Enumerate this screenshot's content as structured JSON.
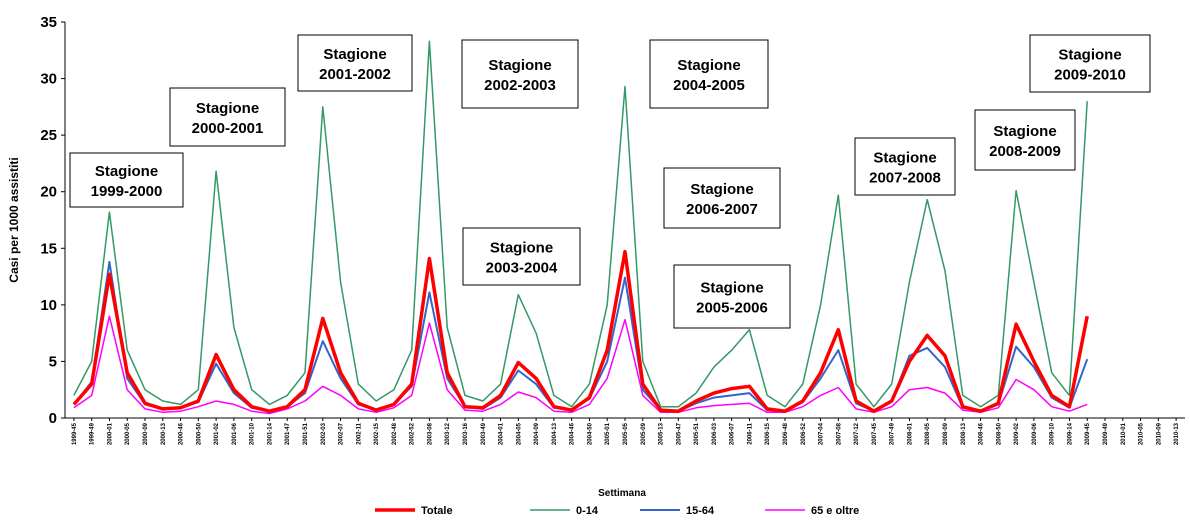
{
  "chart_data": {
    "type": "line",
    "y_label": "Casi per 1000 assistiti",
    "x_label": "Settimana",
    "categories": [
      "1999-45",
      "1999-49",
      "2000-01",
      "2000-05",
      "2000-09",
      "2000-13",
      "2000-46",
      "2000-50",
      "2001-02",
      "2001-06",
      "2001-10",
      "2001-14",
      "2001-47",
      "2001-51",
      "2002-03",
      "2002-07",
      "2002-11",
      "2002-15",
      "2002-48",
      "2002-52",
      "2003-08",
      "2003-12",
      "2003-16",
      "2003-49",
      "2004-01",
      "2004-05",
      "2004-09",
      "2004-13",
      "2004-46",
      "2004-50",
      "2005-01",
      "2005-05",
      "2005-09",
      "2005-13",
      "2005-47",
      "2005-51",
      "2006-03",
      "2006-07",
      "2006-11",
      "2006-15",
      "2006-48",
      "2006-52",
      "2007-04",
      "2007-08",
      "2007-12",
      "2007-45",
      "2007-49",
      "2008-01",
      "2008-05",
      "2008-09",
      "2008-13",
      "2008-46",
      "2008-50",
      "2009-02",
      "2009-06",
      "2009-10",
      "2009-14",
      "2009-45",
      "2009-49",
      "2010-01",
      "2010-05",
      "2010-09",
      "2010-13"
    ],
    "series": [
      {
        "name": "Totale",
        "color": "#ff0000",
        "width": 3.5,
        "values": [
          1.2,
          3,
          12.7,
          4,
          1.3,
          0.8,
          0.9,
          1.5,
          5.6,
          2.5,
          1,
          0.6,
          1,
          2.5,
          8.8,
          4,
          1.3,
          0.7,
          1.2,
          3,
          14.1,
          4,
          1,
          0.9,
          2,
          4.9,
          3.5,
          1,
          0.7,
          1.8,
          6,
          14.7,
          3,
          0.7,
          0.6,
          1.5,
          2.2,
          2.6,
          2.8,
          0.8,
          0.6,
          1.5,
          4,
          7.8,
          1.5,
          0.6,
          1.5,
          5,
          7.3,
          5.5,
          1,
          0.6,
          1.3,
          8.3,
          5,
          2,
          1,
          9,
          null,
          null,
          null,
          null,
          null
        ]
      },
      {
        "name": "0-14",
        "color": "#339966",
        "width": 1.5,
        "values": [
          2,
          5,
          18.2,
          6,
          2.5,
          1.5,
          1.2,
          2.5,
          21.8,
          8,
          2.5,
          1.2,
          2,
          4,
          27.5,
          12,
          3,
          1.5,
          2.5,
          6,
          33.3,
          8,
          2,
          1.5,
          3,
          10.9,
          7.5,
          2,
          1,
          3,
          10,
          29.3,
          5,
          1,
          1,
          2.2,
          4.5,
          6,
          7.8,
          2,
          1,
          3,
          10,
          19.7,
          3,
          1,
          3,
          12,
          19.3,
          13,
          2,
          1,
          2,
          20.1,
          12,
          4,
          2,
          28,
          null,
          null,
          null,
          null,
          null
        ]
      },
      {
        "name": "15-64",
        "color": "#3366cc",
        "width": 2,
        "values": [
          1.2,
          3.2,
          13.8,
          3.5,
          1.2,
          0.8,
          0.9,
          1.4,
          4.8,
          2.2,
          0.9,
          0.6,
          1,
          2.2,
          6.8,
          3.5,
          1.2,
          0.7,
          1.2,
          2.8,
          11.1,
          3.5,
          1,
          0.8,
          1.8,
          4.2,
          3,
          0.9,
          0.7,
          1.7,
          5,
          12.4,
          2.5,
          0.7,
          0.6,
          1.3,
          1.8,
          2,
          2.2,
          0.7,
          0.6,
          1.4,
          3.5,
          6,
          1.3,
          0.6,
          1.5,
          5.5,
          6.2,
          4.5,
          0.9,
          0.6,
          1.2,
          6.3,
          4.5,
          1.8,
          0.9,
          5.2,
          null,
          null,
          null,
          null,
          null
        ]
      },
      {
        "name": "65 e oltre",
        "color": "#ff00ff",
        "width": 1.5,
        "values": [
          0.9,
          2,
          9,
          2.5,
          0.8,
          0.5,
          0.6,
          1,
          1.5,
          1.2,
          0.6,
          0.4,
          0.8,
          1.5,
          2.8,
          2,
          0.8,
          0.5,
          0.9,
          2,
          8.4,
          2.5,
          0.7,
          0.6,
          1.2,
          2.3,
          1.8,
          0.6,
          0.5,
          1.2,
          3.5,
          8.7,
          2,
          0.5,
          0.5,
          0.9,
          1.1,
          1.2,
          1.3,
          0.5,
          0.5,
          1,
          2,
          2.7,
          0.8,
          0.5,
          1,
          2.5,
          2.7,
          2.2,
          0.7,
          0.5,
          0.9,
          3.4,
          2.5,
          1,
          0.6,
          1.2,
          null,
          null,
          null,
          null,
          null
        ]
      }
    ],
    "ylim": [
      0,
      35
    ],
    "yticks": [
      0,
      5,
      10,
      15,
      20,
      25,
      30,
      35
    ],
    "annotations": [
      [
        "Stagione",
        "1999-2000"
      ],
      [
        "Stagione",
        "2000-2001"
      ],
      [
        "Stagione",
        "2001-2002"
      ],
      [
        "Stagione",
        "2002-2003"
      ],
      [
        "Stagione",
        "2003-2004"
      ],
      [
        "Stagione",
        "2004-2005"
      ],
      [
        "Stagione",
        "2005-2006"
      ],
      [
        "Stagione",
        "2006-2007"
      ],
      [
        "Stagione",
        "2007-2008"
      ],
      [
        "Stagione",
        "2008-2009"
      ],
      [
        "Stagione",
        "2009-2010"
      ]
    ]
  }
}
